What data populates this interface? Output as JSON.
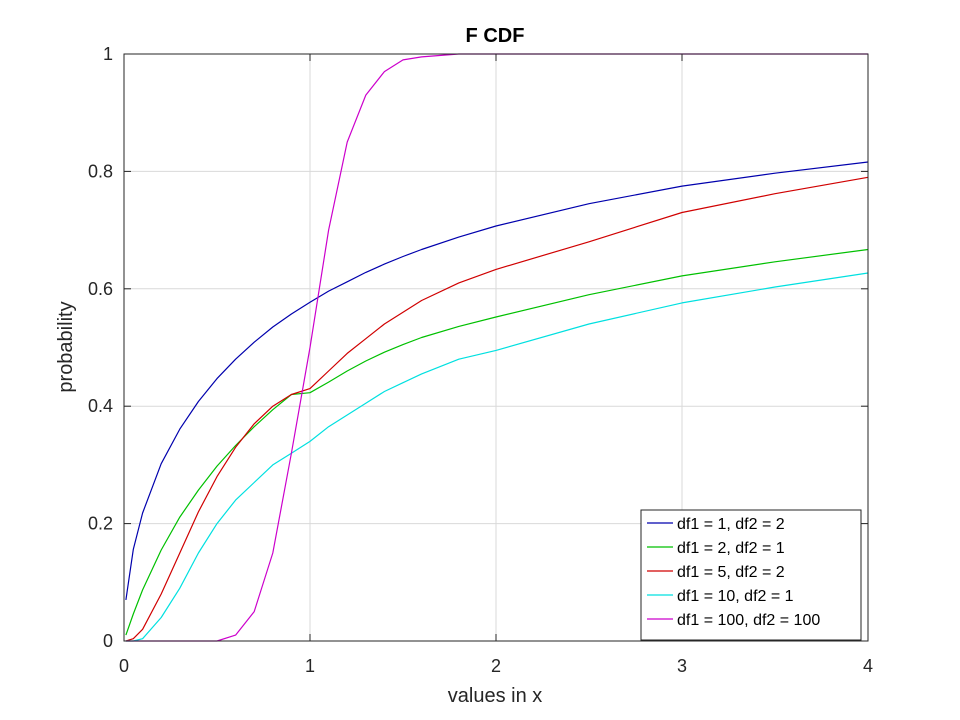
{
  "chart_data": {
    "type": "line",
    "title": "F CDF",
    "xlabel": "values in x",
    "ylabel": "probability",
    "xlim": [
      0,
      4
    ],
    "ylim": [
      0,
      1
    ],
    "xticks": [
      0,
      1,
      2,
      3,
      4
    ],
    "xtick_labels": [
      "0",
      "1",
      "2",
      "3",
      "4"
    ],
    "yticks": [
      0,
      0.2,
      0.4,
      0.6,
      0.8,
      1
    ],
    "ytick_labels": [
      "0",
      "0.2",
      "0.4",
      "0.6",
      "0.8",
      "1"
    ],
    "grid": true,
    "legend_position": "bottom-right",
    "x": [
      0.01,
      0.05,
      0.1,
      0.2,
      0.3,
      0.4,
      0.5,
      0.6,
      0.7,
      0.8,
      0.9,
      1.0,
      1.1,
      1.2,
      1.3,
      1.4,
      1.5,
      1.6,
      1.8,
      2.0,
      2.5,
      3.0,
      3.5,
      4.0
    ],
    "series": [
      {
        "name": "df1 = 1, df2 = 2",
        "color": "#0000ad",
        "values": [
          0.07,
          0.156,
          0.218,
          0.302,
          0.361,
          0.408,
          0.447,
          0.48,
          0.509,
          0.535,
          0.557,
          0.577,
          0.596,
          0.612,
          0.628,
          0.642,
          0.655,
          0.667,
          0.688,
          0.707,
          0.745,
          0.775,
          0.797,
          0.816
        ]
      },
      {
        "name": "df1 = 2, df2 = 1",
        "color": "#00c000",
        "values": [
          0.01,
          0.046,
          0.087,
          0.155,
          0.211,
          0.257,
          0.298,
          0.333,
          0.365,
          0.394,
          0.42,
          0.423,
          0.441,
          0.46,
          0.477,
          0.492,
          0.505,
          0.517,
          0.536,
          0.552,
          0.59,
          0.622,
          0.646,
          0.667
        ]
      },
      {
        "name": "df1 = 5, df2 = 2",
        "color": "#d00000",
        "values": [
          0.0,
          0.004,
          0.02,
          0.08,
          0.15,
          0.22,
          0.28,
          0.33,
          0.37,
          0.4,
          0.42,
          0.43,
          0.46,
          0.49,
          0.515,
          0.54,
          0.56,
          0.58,
          0.61,
          0.633,
          0.68,
          0.73,
          0.762,
          0.79
        ]
      },
      {
        "name": "df1 = 10, df2 = 1",
        "color": "#00e0e0",
        "values": [
          0.0,
          0.0,
          0.004,
          0.04,
          0.09,
          0.15,
          0.2,
          0.24,
          0.27,
          0.3,
          0.32,
          0.34,
          0.365,
          0.385,
          0.405,
          0.425,
          0.44,
          0.455,
          0.48,
          0.495,
          0.54,
          0.576,
          0.603,
          0.627
        ]
      },
      {
        "name": "df1 = 100, df2 = 100",
        "color": "#cc00cc",
        "values": [
          0.0,
          0.0,
          0.0,
          0.0,
          0.0,
          0.0,
          0.0,
          0.01,
          0.05,
          0.15,
          0.32,
          0.5,
          0.7,
          0.85,
          0.93,
          0.97,
          0.99,
          0.995,
          1.0,
          1.0,
          1.0,
          1.0,
          1.0,
          1.0
        ]
      }
    ]
  }
}
